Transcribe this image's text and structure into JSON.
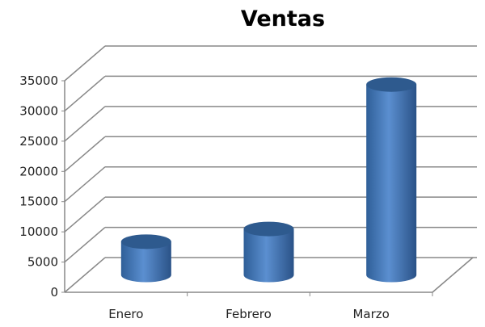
{
  "chart_data": {
    "type": "bar",
    "style": "3d-cylinder",
    "title": "Ventas",
    "categories": [
      "Enero",
      "Febrero",
      "Marzo"
    ],
    "values": [
      5500,
      7600,
      31500
    ],
    "ylim": [
      0,
      35000
    ],
    "yticks": [
      "0",
      "5000",
      "10000",
      "15000",
      "20000",
      "25000",
      "30000",
      "35000"
    ],
    "grid": true,
    "legend": "none",
    "bar_color": "#4a7ebb",
    "bar_top_color": "#2e5a8e"
  }
}
